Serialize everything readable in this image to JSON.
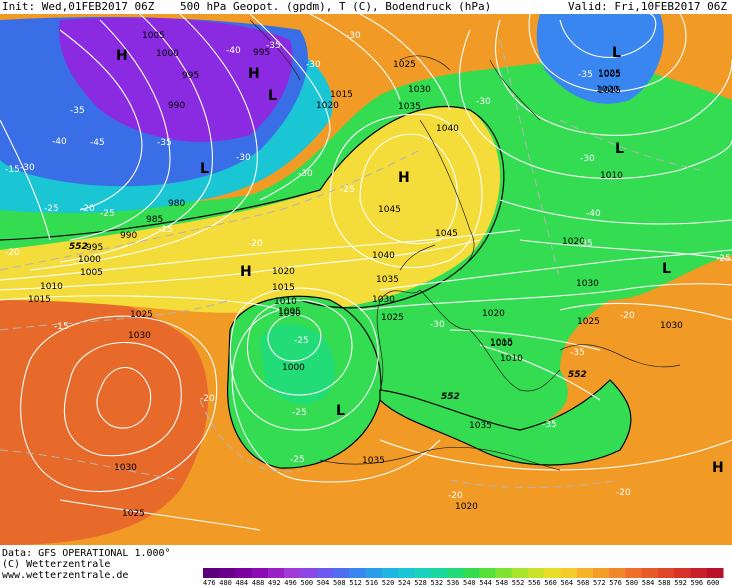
{
  "header": {
    "init": "Init: Wed,01FEB2017 06Z",
    "title": "500 hPa Geopot. (gpdm), T (C), Bodendruck (hPa)",
    "valid": "Valid: Fri,10FEB2017 06Z"
  },
  "footer": {
    "data_line": "Data: GFS OPERATIONAL 1.000°",
    "copyright": "(C) Wetterzentrale",
    "url": "www.wetterzentrale.de"
  },
  "colors": {
    "purple": "#8a2be2",
    "blue": "#3a6ee6",
    "cyan": "#22c8e6",
    "green": "#2fd84a",
    "yellow": "#f4dc3a",
    "orange": "#f29a26",
    "red_orange": "#e86a2a",
    "isobar": "#ffffff",
    "isotherm": "#c8c8c8"
  },
  "color_scale": {
    "values": [
      "476",
      "480",
      "484",
      "488",
      "492",
      "496",
      "500",
      "504",
      "508",
      "512",
      "516",
      "520",
      "524",
      "528",
      "532",
      "536",
      "540",
      "544",
      "548",
      "552",
      "556",
      "560",
      "564",
      "568",
      "572",
      "576",
      "580",
      "584",
      "588",
      "592",
      "596",
      "600"
    ],
    "colors": [
      "#5a007a",
      "#6a008a",
      "#7a00a0",
      "#8c0ab4",
      "#9a20c8",
      "#a03ad8",
      "#8c46e6",
      "#6a5af0",
      "#4e6ef2",
      "#3a86f0",
      "#2a9ee8",
      "#20b4e0",
      "#1ac6d4",
      "#18d2be",
      "#1ad8a0",
      "#22dc78",
      "#34dc52",
      "#56e03a",
      "#80e232",
      "#a6e42e",
      "#cae22a",
      "#e8de2a",
      "#f6cc2a",
      "#f6b42a",
      "#f49e2a",
      "#f2862a",
      "#ee6e2a",
      "#e85a2a",
      "#e0462a",
      "#d6322a",
      "#c8202a",
      "#b8102a"
    ]
  },
  "pressure_labels": [
    "1005",
    "1000",
    "995",
    "990",
    "995",
    "1025",
    "1030",
    "1015",
    "1020",
    "1035",
    "1040",
    "1045",
    "1045",
    "1040",
    "1035",
    "1030",
    "1025",
    "1020",
    "1020",
    "1015",
    "1010",
    "1005",
    "1000",
    "985",
    "980",
    "990",
    "995",
    "1000",
    "1005",
    "1010",
    "1015",
    "1025",
    "1030",
    "1030",
    "1025",
    "1020",
    "1015",
    "1010",
    "1000",
    "1005",
    "1015",
    "1010",
    "1020",
    "1030",
    "1025",
    "1030",
    "1035",
    "1035",
    "1030",
    "1025",
    "1020"
  ],
  "temp_labels": [
    "-40",
    "-35",
    "-45",
    "-40",
    "-35",
    "-30",
    "-30",
    "-30",
    "-35",
    "-30",
    "-25",
    "-20",
    "-15",
    "-25",
    "-20",
    "-25",
    "-20",
    "-30",
    "-35",
    "-35",
    "-30",
    "-40",
    "-35",
    "-35",
    "-30",
    "-25",
    "-25",
    "-25",
    "-20",
    "-15",
    "-15",
    "-20",
    "-20",
    "-30",
    "-25",
    "-20"
  ],
  "height_labels": [
    "552",
    "552",
    "552"
  ],
  "centers": [
    "H",
    "L",
    "H",
    "L",
    "L",
    "H",
    "H",
    "L",
    "L",
    "L",
    "H"
  ]
}
